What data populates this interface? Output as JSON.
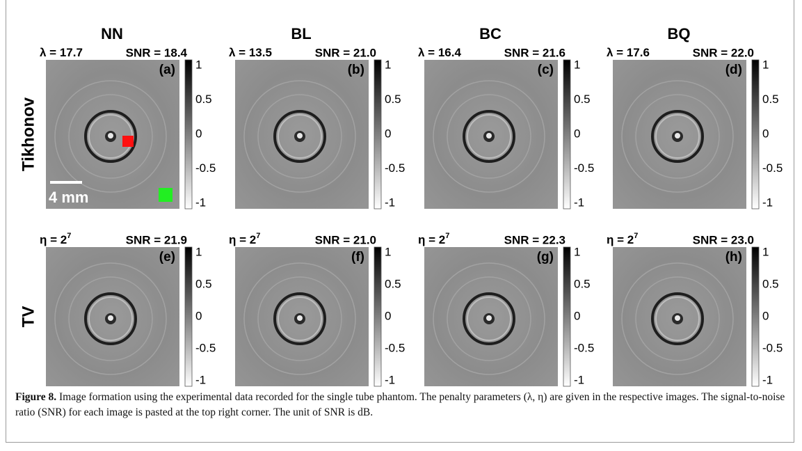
{
  "columns": [
    "NN",
    "BL",
    "BC",
    "BQ"
  ],
  "rows": [
    {
      "label": "Tikhonov",
      "panels": [
        {
          "param": "λ = 17.7",
          "snr": "SNR = 18.4",
          "tag": "(a)"
        },
        {
          "param": "λ = 13.5",
          "snr": "SNR = 21.0",
          "tag": "(b)"
        },
        {
          "param": "λ = 16.4",
          "snr": "SNR = 21.6",
          "tag": "(c)"
        },
        {
          "param": "λ = 17.6",
          "snr": "SNR = 22.0",
          "tag": "(d)"
        }
      ]
    },
    {
      "label": "TV",
      "panels": [
        {
          "param": "η = 2",
          "param_sup": "7",
          "snr": "SNR = 21.9",
          "tag": "(e)"
        },
        {
          "param": "η = 2",
          "param_sup": "7",
          "snr": "SNR = 21.0",
          "tag": "(f)"
        },
        {
          "param": "η = 2",
          "param_sup": "7",
          "snr": "SNR = 22.3",
          "tag": "(g)"
        },
        {
          "param": "η = 2",
          "param_sup": "7",
          "snr": "SNR = 23.0",
          "tag": "(h)"
        }
      ]
    }
  ],
  "colorbar_ticks": [
    "1",
    "0.5",
    "0",
    "-0.5",
    "-1"
  ],
  "scale_bar": "4 mm",
  "caption": {
    "label": "Figure 8.",
    "text": "Image formation using the experimental data recorded for the single tube phantom. The penalty parameters (λ, η) are given in the respective images. The signal-to-noise ratio (SNR) for each image is pasted at the top right corner. The unit of SNR is dB."
  }
}
